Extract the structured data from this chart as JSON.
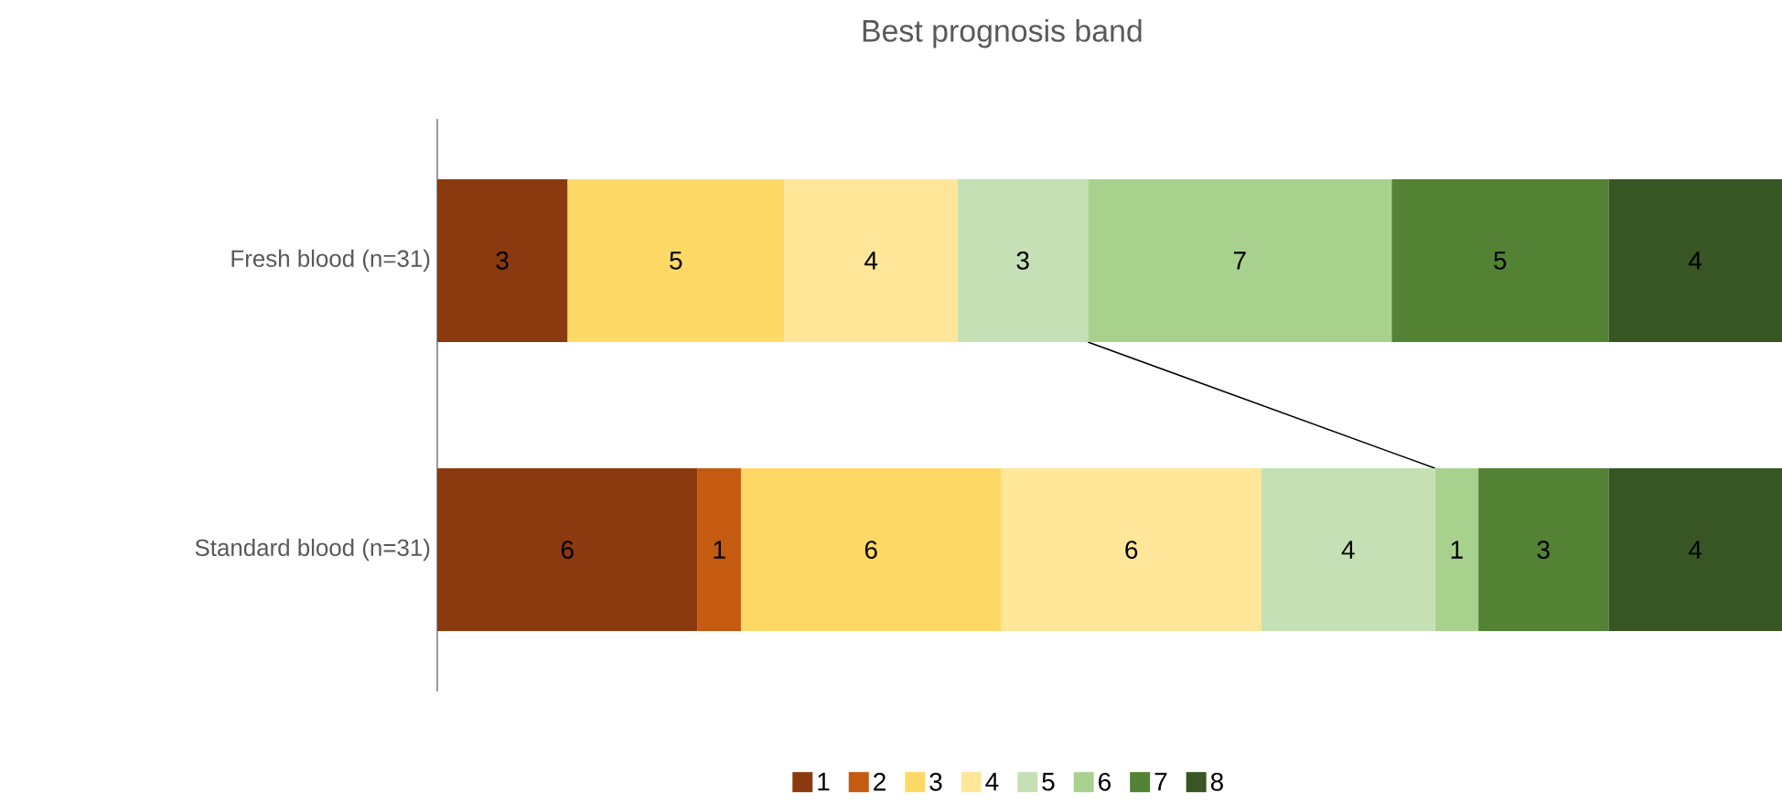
{
  "chart_data": {
    "type": "bar",
    "orientation": "horizontal",
    "stacked": true,
    "title": "Best prognosis band",
    "categories": [
      "Fresh blood (n=31)",
      "Standard blood (n=31)"
    ],
    "series": [
      {
        "name": "1",
        "color": "#8b3a0f",
        "values": [
          3,
          6
        ],
        "value_labels": [
          "3",
          "6"
        ]
      },
      {
        "name": "2",
        "color": "#c55a11",
        "values": [
          0,
          1
        ],
        "value_labels": [
          null,
          "1"
        ]
      },
      {
        "name": "3",
        "color": "#ffd966",
        "values": [
          5,
          6
        ],
        "value_labels": [
          "5",
          "6"
        ]
      },
      {
        "name": "4",
        "color": "#ffe699",
        "values": [
          4,
          6
        ],
        "value_labels": [
          "4",
          "6"
        ]
      },
      {
        "name": "5",
        "color": "#c5e0b4",
        "values": [
          3,
          4
        ],
        "value_labels": [
          "3",
          "4"
        ]
      },
      {
        "name": "6",
        "color": "#a9d18e",
        "values": [
          7,
          1
        ],
        "value_labels": [
          "7",
          "1"
        ]
      },
      {
        "name": "7",
        "color": "#548235",
        "values": [
          5,
          3
        ],
        "value_labels": [
          "5",
          "3"
        ]
      },
      {
        "name": "8",
        "color": "#375623",
        "values": [
          4,
          4
        ],
        "value_labels": [
          "4",
          "4"
        ]
      }
    ],
    "tick_labels": "y",
    "legend": "bottom"
  }
}
